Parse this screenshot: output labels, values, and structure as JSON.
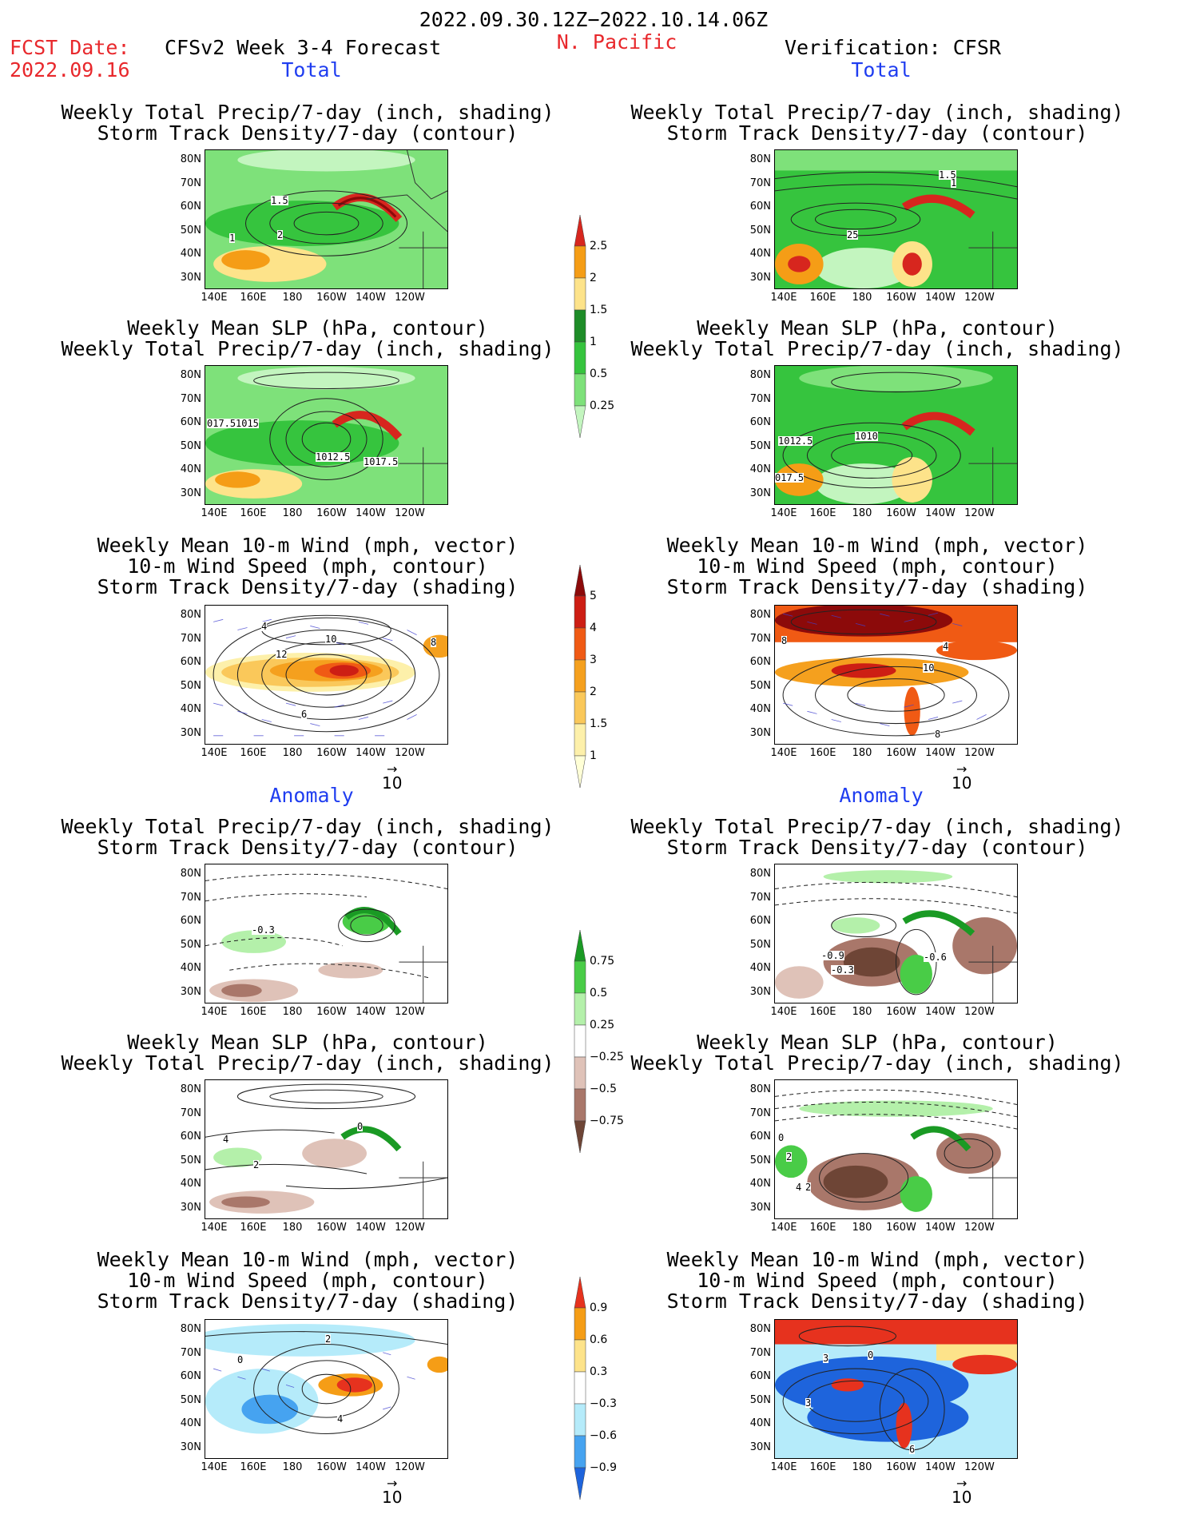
{
  "header": {
    "period": "2022.09.30.12Z−2022.10.14.06Z",
    "fcst_label": "FCST Date:",
    "fcst_date": "2022.09.16",
    "model": "CFSv2 Week 3-4 Forecast",
    "region": "N. Pacific",
    "verification": "Verification: CFSR"
  },
  "sections": {
    "total": "Total",
    "anomaly": "Anomaly"
  },
  "titles": {
    "precip_storm": [
      "Weekly Total Precip/7-day (inch, shading)",
      "Storm Track Density/7-day (contour)"
    ],
    "slp_precip": [
      "Weekly Mean SLP (hPa, contour)",
      "Weekly Total Precip/7-day (inch, shading)"
    ],
    "wind_storm": [
      "Weekly Mean 10-m Wind (mph, vector)",
      "10-m Wind Speed (mph, contour)",
      "Storm Track Density/7-day (shading)"
    ]
  },
  "axes": {
    "lat": [
      "80N",
      "70N",
      "60N",
      "50N",
      "40N",
      "30N"
    ],
    "lon": [
      "140E",
      "160E",
      "180",
      "160W",
      "140W",
      "120W"
    ]
  },
  "vector_ref": "10",
  "colorbars": {
    "precip_total": {
      "labels": [
        "2.5",
        "2",
        "1.5",
        "1",
        "0.5",
        "0.25"
      ],
      "colors": [
        "#d7261e",
        "#f59d16",
        "#fde38a",
        "#1e8c28",
        "#36c43e",
        "#7ee17a",
        "#c3f5bf"
      ]
    },
    "storm_total": {
      "labels": [
        "5",
        "4",
        "3",
        "2",
        "1.5",
        "1"
      ],
      "colors": [
        "#8c0a0a",
        "#cd1e14",
        "#f05a14",
        "#f5a01e",
        "#fac85a",
        "#fdf0aa",
        "#ffffd6"
      ]
    },
    "precip_anom": {
      "labels": [
        "0.75",
        "0.5",
        "0.25",
        "−0.25",
        "−0.5",
        "−0.75"
      ],
      "colors": [
        "#1a9a24",
        "#49cc47",
        "#b4f0aa",
        "#ffffff",
        "#dfc2b8",
        "#a9776a",
        "#6e4536"
      ]
    },
    "storm_anom": {
      "labels": [
        "0.9",
        "0.6",
        "0.3",
        "−0.3",
        "−0.6",
        "−0.9"
      ],
      "colors": [
        "#e6321e",
        "#f59d16",
        "#fde38a",
        "#ffffff",
        "#b5ebfa",
        "#46a3f0",
        "#1e64dc"
      ]
    }
  },
  "panel_labels": {
    "f1": [
      "1.5",
      "2",
      "1"
    ],
    "v1": [
      "1.5",
      "1",
      "25"
    ],
    "f2": [
      "017.5",
      "1015",
      "1012.5",
      "1017.5"
    ],
    "v2": [
      "1012.5",
      "1010",
      "017.5"
    ],
    "f3": [
      "12",
      "10",
      "8",
      "6",
      "4"
    ],
    "v3": [
      "8",
      "4",
      "10",
      "8"
    ],
    "f4": [
      "-0.3"
    ],
    "v4": [
      "-0.9",
      "-0.3",
      "-0.6"
    ],
    "f5": [
      "2",
      "4",
      "0"
    ],
    "v5": [
      "0",
      "2",
      "4",
      "2"
    ],
    "f6": [
      "2",
      "0",
      "4"
    ],
    "v6": [
      "3",
      "0",
      "3",
      "6"
    ]
  }
}
